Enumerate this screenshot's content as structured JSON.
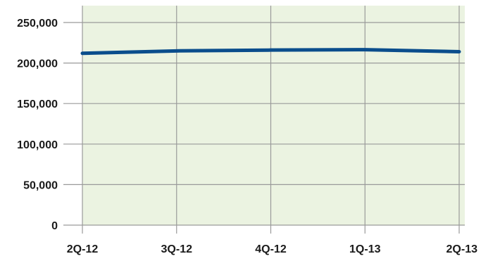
{
  "chart_data": {
    "type": "line",
    "title": "",
    "xlabel": "",
    "ylabel": "",
    "categories": [
      "2Q-12",
      "3Q-12",
      "4Q-12",
      "1Q-13",
      "2Q-13"
    ],
    "series": [
      {
        "values": [
          212000,
          215000,
          216000,
          216500,
          214000
        ]
      }
    ],
    "ylim": [
      0,
      260000
    ],
    "yticks": [
      0,
      50000,
      100000,
      150000,
      200000,
      250000
    ],
    "ytick_labels": [
      "0",
      "50,000",
      "100,000",
      "150,000",
      "200,000",
      "250,000"
    ],
    "grid": true,
    "legend": "none",
    "colors": {
      "plot_background": "#ebf3e1",
      "grid": "#9a9a9a",
      "line": "#0a4d8c"
    }
  }
}
